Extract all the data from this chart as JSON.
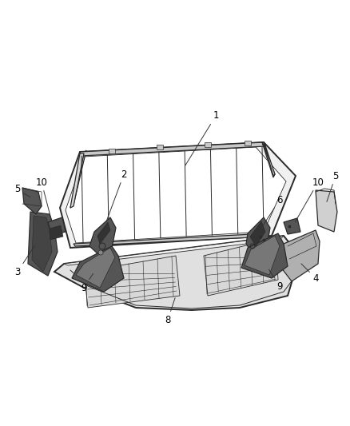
{
  "background_color": "#ffffff",
  "fig_width": 4.38,
  "fig_height": 5.33,
  "dpi": 100,
  "line_color": "#2a2a2a",
  "light_fill": "#e8e8e8",
  "mid_fill": "#c8c8c8",
  "dark_fill": "#555555",
  "very_dark": "#333333",
  "label_fontsize": 8.5,
  "label_color": "#000000"
}
